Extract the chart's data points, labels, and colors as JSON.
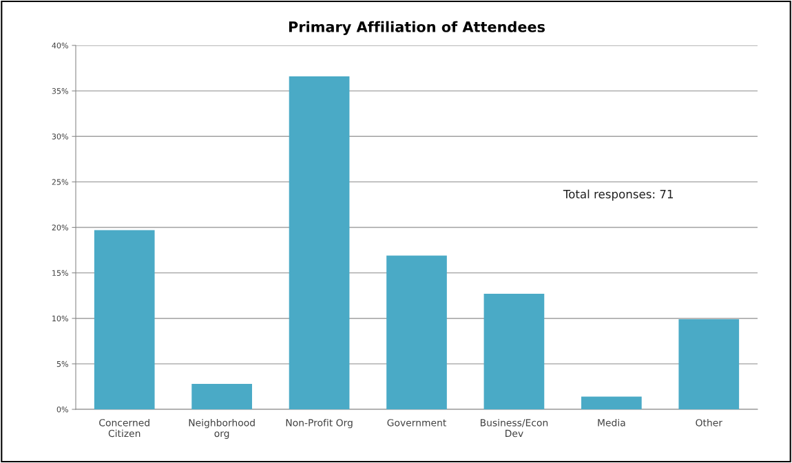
{
  "chart_data": {
    "type": "bar",
    "title": "Primary Affiliation of Attendees",
    "categories": [
      "Concerned\nCitizen",
      "Neighborhood\norg",
      "Non-Profit Org",
      "Government",
      "Business/Econ\nDev",
      "Media",
      "Other"
    ],
    "values": [
      19.7,
      2.8,
      36.6,
      16.9,
      12.7,
      1.4,
      9.9
    ],
    "color": "#4aaac6",
    "ylim": [
      0,
      40
    ],
    "yticks": [
      {
        "value": 0,
        "label": "0%"
      },
      {
        "value": 5,
        "label": "5%"
      },
      {
        "value": 10,
        "label": "10%"
      },
      {
        "value": 15,
        "label": "15%"
      },
      {
        "value": 20,
        "label": "20%"
      },
      {
        "value": 25,
        "label": "25%"
      },
      {
        "value": 30,
        "label": "30%"
      },
      {
        "value": 35,
        "label": "35%"
      },
      {
        "value": 40,
        "label": "40%"
      }
    ],
    "grid": "y",
    "annotations": [
      "Total responses: 71"
    ]
  }
}
